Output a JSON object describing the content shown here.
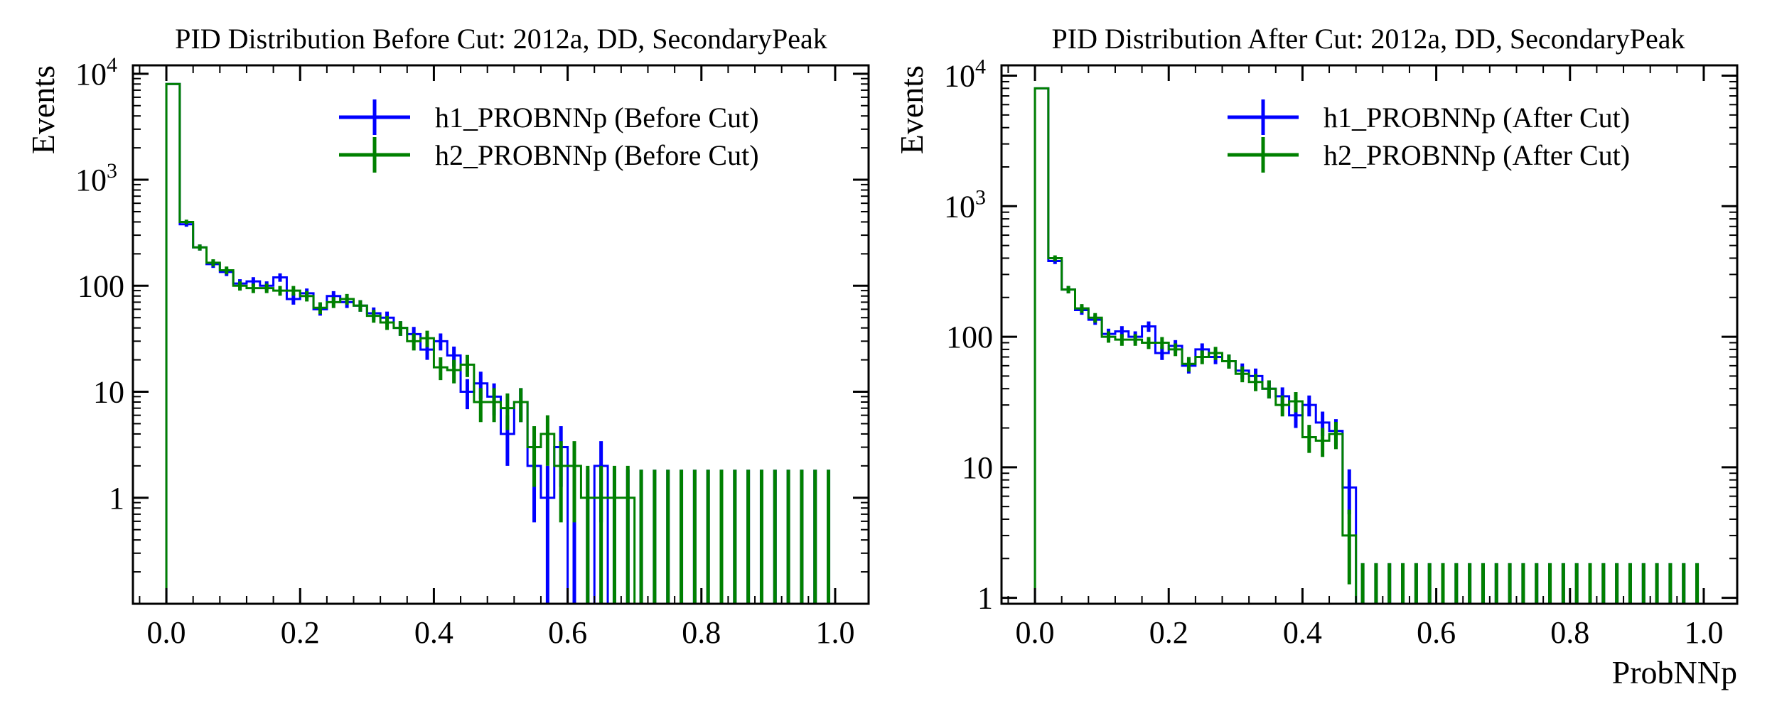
{
  "figure": {
    "background": "#ffffff"
  },
  "colors": {
    "h1": "#0000ff",
    "h2": "#008000"
  },
  "chart_data": [
    {
      "type": "histogram",
      "title": "PID Distribution Before Cut: 2012a, DD, SecondaryPeak",
      "xlabel": "",
      "ylabel": "Events",
      "yscale": "log",
      "xlim": [
        -0.05,
        1.05
      ],
      "ylim": [
        0.1,
        12000
      ],
      "xticks": [
        0.0,
        0.2,
        0.4,
        0.6,
        0.8,
        1.0
      ],
      "xtick_labels": [
        "0.0",
        "0.2",
        "0.4",
        "0.6",
        "0.8",
        "1.0"
      ],
      "yticks": [
        {
          "value": 10000,
          "base": "10",
          "exp": "4"
        },
        {
          "value": 1000,
          "base": "10",
          "exp": "3"
        },
        {
          "value": 100,
          "base": "100",
          "exp": ""
        },
        {
          "value": 10,
          "base": "10",
          "exp": ""
        },
        {
          "value": 1,
          "base": "1",
          "exp": ""
        }
      ],
      "legend_position": "top-right",
      "bin_edges_start": 0.0,
      "bin_width": 0.02,
      "series": [
        {
          "name": "h1_PROBNNp (Before Cut)",
          "values": [
            8000,
            380,
            230,
            160,
            135,
            105,
            110,
            100,
            120,
            75,
            85,
            60,
            80,
            70,
            65,
            55,
            50,
            40,
            35,
            25,
            30,
            22,
            10,
            12,
            9,
            4,
            8,
            2,
            1,
            3,
            0,
            0,
            2,
            0,
            0,
            0,
            0,
            0,
            0,
            0,
            0,
            0,
            0,
            0,
            0,
            0,
            0,
            0,
            0,
            0
          ]
        },
        {
          "name": "h2_PROBNNp (Before Cut)",
          "values": [
            8000,
            400,
            230,
            165,
            140,
            100,
            95,
            95,
            90,
            90,
            80,
            62,
            70,
            75,
            65,
            52,
            45,
            40,
            30,
            32,
            17,
            16,
            18,
            8,
            8,
            7,
            8,
            3,
            4,
            2,
            2,
            1,
            1,
            1,
            1,
            0,
            0,
            0,
            0,
            0,
            0,
            0,
            0,
            0,
            0,
            0,
            0,
            0,
            0,
            0
          ]
        }
      ]
    },
    {
      "type": "histogram",
      "title": "PID Distribution After Cut: 2012a, DD, SecondaryPeak",
      "xlabel": "ProbNNp",
      "ylabel": "Events",
      "yscale": "log",
      "xlim": [
        -0.05,
        1.05
      ],
      "ylim": [
        0.9,
        12000
      ],
      "xticks": [
        0.0,
        0.2,
        0.4,
        0.6,
        0.8,
        1.0
      ],
      "xtick_labels": [
        "0.0",
        "0.2",
        "0.4",
        "0.6",
        "0.8",
        "1.0"
      ],
      "yticks": [
        {
          "value": 10000,
          "base": "10",
          "exp": "4"
        },
        {
          "value": 1000,
          "base": "10",
          "exp": "3"
        },
        {
          "value": 100,
          "base": "100",
          "exp": ""
        },
        {
          "value": 10,
          "base": "10",
          "exp": ""
        },
        {
          "value": 1,
          "base": "1",
          "exp": ""
        }
      ],
      "legend_position": "top-right",
      "bin_edges_start": 0.0,
      "bin_width": 0.02,
      "series": [
        {
          "name": "h1_PROBNNp (After Cut)",
          "values": [
            8000,
            380,
            230,
            160,
            135,
            105,
            110,
            100,
            120,
            75,
            85,
            60,
            80,
            70,
            65,
            55,
            50,
            40,
            35,
            25,
            30,
            22,
            19,
            7,
            0,
            0,
            0,
            0,
            0,
            0,
            0,
            0,
            0,
            0,
            0,
            0,
            0,
            0,
            0,
            0,
            0,
            0,
            0,
            0,
            0,
            0,
            0,
            0,
            0,
            0
          ]
        },
        {
          "name": "h2_PROBNNp (After Cut)",
          "values": [
            8000,
            400,
            230,
            165,
            140,
            100,
            95,
            95,
            90,
            90,
            80,
            62,
            70,
            75,
            65,
            52,
            45,
            40,
            30,
            32,
            17,
            16,
            18,
            3,
            0,
            0,
            0,
            0,
            0,
            0,
            0,
            0,
            0,
            0,
            0,
            0,
            0,
            0,
            0,
            0,
            0,
            0,
            0,
            0,
            0,
            0,
            0,
            0,
            0,
            0
          ]
        }
      ]
    }
  ]
}
